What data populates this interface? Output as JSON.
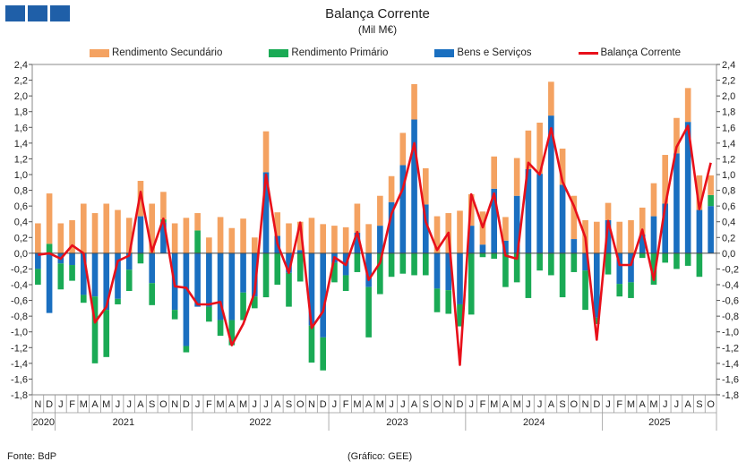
{
  "chart_data": {
    "type": "bar",
    "title": "Balança Corrente",
    "subtitle": "(Mil M€)",
    "ylim": [
      -1.8,
      2.4
    ],
    "yticks": [
      "2,4",
      "2,2",
      "2,0",
      "1,8",
      "1,6",
      "1,4",
      "1,2",
      "1,0",
      "0,8",
      "0,6",
      "0,4",
      "0,2",
      "0,0",
      "-0,2",
      "-0,4",
      "-0,6",
      "-0,8",
      "-1,0",
      "-1,2",
      "-1,4",
      "-1,6",
      "-1,8"
    ],
    "months": [
      "N",
      "D",
      "J",
      "F",
      "M",
      "A",
      "M",
      "J",
      "J",
      "A",
      "S",
      "O",
      "N",
      "D",
      "J",
      "F",
      "M",
      "A",
      "M",
      "J",
      "J",
      "A",
      "S",
      "O",
      "N",
      "D",
      "J",
      "F",
      "M",
      "A",
      "M",
      "J",
      "J",
      "A",
      "S",
      "O",
      "N",
      "D",
      "J",
      "F",
      "M",
      "A",
      "M",
      "J",
      "J",
      "A",
      "S",
      "O",
      "N",
      "D",
      "J",
      "F",
      "M",
      "A",
      "M",
      "J",
      "J",
      "A",
      "S",
      "O"
    ],
    "years": [
      "2020",
      "2021",
      "2022",
      "2023",
      "2024",
      "2025"
    ],
    "year_spans": [
      [
        0,
        1
      ],
      [
        2,
        13
      ],
      [
        14,
        25
      ],
      [
        26,
        37
      ],
      [
        38,
        49
      ],
      [
        50,
        59
      ]
    ],
    "series": [
      {
        "name": "Rendimento Secundário",
        "color": "#f4a261",
        "values": [
          0.38,
          0.64,
          0.38,
          0.42,
          0.63,
          0.51,
          0.63,
          0.55,
          0.45,
          0.45,
          0.63,
          0.35,
          0.38,
          0.45,
          0.22,
          0.2,
          0.46,
          0.32,
          0.44,
          0.2,
          0.52,
          0.3,
          0.38,
          0.36,
          0.45,
          0.37,
          0.35,
          0.33,
          0.37,
          0.37,
          0.38,
          0.33,
          0.41,
          0.45,
          0.46,
          0.47,
          0.51,
          0.54,
          0.4,
          0.42,
          0.41,
          0.3,
          0.48,
          0.49,
          0.65,
          0.43,
          0.46,
          0.55,
          0.42,
          0.4,
          0.22,
          0.4,
          0.42,
          0.34,
          0.42,
          0.62,
          0.45,
          0.43,
          0.44,
          0.25
        ]
      },
      {
        "name": "Rendimento Primário",
        "color": "#1aaa55",
        "values": [
          -0.2,
          0.12,
          -0.33,
          -0.2,
          -0.1,
          -0.85,
          -0.6,
          -0.07,
          -0.27,
          -0.13,
          -0.28,
          0.04,
          -0.12,
          -0.08,
          0.29,
          -0.19,
          -0.2,
          -0.32,
          -0.35,
          -0.15,
          -0.56,
          -0.4,
          -0.43,
          -0.36,
          -0.47,
          -0.42,
          -0.25,
          -0.2,
          -0.24,
          -0.64,
          -0.52,
          -0.3,
          -0.26,
          -0.28,
          -0.28,
          -0.3,
          -0.3,
          -0.28,
          -0.78,
          -0.05,
          -0.07,
          -0.43,
          -0.37,
          -0.57,
          -0.22,
          -0.28,
          -0.56,
          -0.24,
          -0.5,
          -0.08,
          -0.27,
          -0.16,
          -0.2,
          -0.06,
          -0.4,
          -0.12,
          -0.2,
          -0.16,
          -0.3,
          0.14
        ]
      },
      {
        "name": "Bens e Serviços",
        "color": "#1a6fc0",
        "values": [
          -0.2,
          -0.76,
          -0.13,
          -0.15,
          -0.53,
          -0.55,
          -0.72,
          -0.58,
          -0.21,
          0.47,
          -0.38,
          0.39,
          -0.72,
          -1.18,
          -0.68,
          -0.68,
          -0.85,
          -0.85,
          -0.5,
          -0.55,
          1.03,
          0.22,
          -0.25,
          0.04,
          -0.92,
          -1.07,
          -0.12,
          -0.28,
          0.26,
          -0.43,
          0.35,
          0.65,
          1.12,
          1.7,
          0.62,
          -0.45,
          -0.47,
          -0.65,
          0.35,
          0.11,
          0.82,
          0.16,
          0.73,
          1.07,
          1.01,
          1.75,
          0.87,
          0.18,
          -0.22,
          -0.82,
          0.42,
          -0.39,
          -0.37,
          0.24,
          0.47,
          0.63,
          1.27,
          1.67,
          0.55,
          0.6
        ]
      },
      {
        "name": "Balança Corrente",
        "color": "#e8101a",
        "type": "line",
        "values": [
          -0.02,
          0.0,
          -0.07,
          0.1,
          0.0,
          -0.88,
          -0.68,
          -0.1,
          -0.03,
          0.78,
          0.02,
          0.44,
          -0.42,
          -0.44,
          -0.65,
          -0.65,
          -0.62,
          -1.17,
          -0.9,
          -0.5,
          1.0,
          0.12,
          -0.25,
          0.39,
          -0.95,
          -0.74,
          -0.05,
          -0.15,
          0.27,
          -0.34,
          -0.12,
          0.5,
          0.82,
          1.4,
          0.4,
          0.04,
          0.26,
          -1.42,
          0.75,
          0.33,
          0.76,
          -0.03,
          -0.07,
          1.15,
          1.0,
          1.59,
          0.91,
          0.6,
          0.2,
          -1.1,
          0.41,
          -0.15,
          -0.15,
          0.3,
          -0.34,
          0.6,
          1.35,
          1.62,
          0.56,
          1.15
        ]
      }
    ]
  },
  "footer": {
    "source": "Fonte: BdP",
    "credit": "(Gráfico: GEE)"
  }
}
